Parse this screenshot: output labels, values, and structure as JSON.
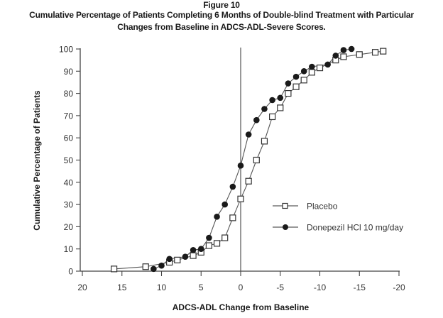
{
  "figure": {
    "label": "Figure 10",
    "title_line1": "Cumulative Percentage of Patients Completing 6 Months of Double-blind Treatment with Particular",
    "title_line2": "Changes from Baseline in ADCS-ADL-Severe Scores."
  },
  "chart_data": {
    "type": "line",
    "title": "Cumulative Percentage of Patients Completing 6 Months of Double-blind Treatment with Particular Changes from Baseline in ADCS-ADL-Severe Scores.",
    "xlabel": "ADCS-ADL Change from Baseline",
    "ylabel": "Cumulative Percentage of Patients",
    "xlim": [
      20,
      -20
    ],
    "ylim": [
      0,
      100
    ],
    "x_reversed": true,
    "x_ticks": [
      20,
      15,
      10,
      5,
      0,
      -5,
      -10,
      -15,
      -20
    ],
    "y_ticks": [
      0,
      10,
      20,
      30,
      40,
      50,
      60,
      70,
      80,
      90,
      100
    ],
    "reference_line_x": 0,
    "grid": false,
    "legend_position": "center-right",
    "series": [
      {
        "name": "Placebo",
        "marker": "open-square",
        "color": "#333333",
        "points": [
          {
            "x": 16,
            "y": 1
          },
          {
            "x": 12,
            "y": 2
          },
          {
            "x": 9,
            "y": 4
          },
          {
            "x": 8,
            "y": 5
          },
          {
            "x": 6,
            "y": 7
          },
          {
            "x": 5,
            "y": 8.5
          },
          {
            "x": 4,
            "y": 11.5
          },
          {
            "x": 3,
            "y": 12.5
          },
          {
            "x": 2,
            "y": 15
          },
          {
            "x": 1,
            "y": 24
          },
          {
            "x": 0,
            "y": 32.5
          },
          {
            "x": -1,
            "y": 40.5
          },
          {
            "x": -2,
            "y": 50
          },
          {
            "x": -3,
            "y": 58.5
          },
          {
            "x": -4,
            "y": 69.5
          },
          {
            "x": -5,
            "y": 73.5
          },
          {
            "x": -6,
            "y": 80
          },
          {
            "x": -7,
            "y": 83
          },
          {
            "x": -8,
            "y": 86
          },
          {
            "x": -9,
            "y": 89.5
          },
          {
            "x": -10,
            "y": 91.5
          },
          {
            "x": -12,
            "y": 95
          },
          {
            "x": -13,
            "y": 96.5
          },
          {
            "x": -15,
            "y": 97.5
          },
          {
            "x": -17,
            "y": 98.5
          },
          {
            "x": -18,
            "y": 99
          }
        ]
      },
      {
        "name": "Donepezil HCl 10 mg/day",
        "marker": "filled-circle",
        "color": "#1a1a1a",
        "points": [
          {
            "x": 11,
            "y": 1
          },
          {
            "x": 10,
            "y": 2.5
          },
          {
            "x": 9,
            "y": 5.5
          },
          {
            "x": 7,
            "y": 6.5
          },
          {
            "x": 6,
            "y": 9.5
          },
          {
            "x": 5,
            "y": 10
          },
          {
            "x": 4,
            "y": 15
          },
          {
            "x": 3,
            "y": 24.5
          },
          {
            "x": 2,
            "y": 30
          },
          {
            "x": 1,
            "y": 38
          },
          {
            "x": 0,
            "y": 47.5
          },
          {
            "x": -1,
            "y": 61.5
          },
          {
            "x": -2,
            "y": 68
          },
          {
            "x": -3,
            "y": 73
          },
          {
            "x": -4,
            "y": 77
          },
          {
            "x": -5,
            "y": 78
          },
          {
            "x": -6,
            "y": 84.5
          },
          {
            "x": -7,
            "y": 87.5
          },
          {
            "x": -8,
            "y": 90
          },
          {
            "x": -9,
            "y": 92
          },
          {
            "x": -11,
            "y": 93
          },
          {
            "x": -12,
            "y": 97
          },
          {
            "x": -13,
            "y": 99.5
          },
          {
            "x": -14,
            "y": 100
          }
        ]
      }
    ],
    "legend": [
      {
        "label": "Placebo",
        "marker": "open-square"
      },
      {
        "label": "Donepezil HCl 10 mg/day",
        "marker": "filled-circle"
      }
    ]
  }
}
